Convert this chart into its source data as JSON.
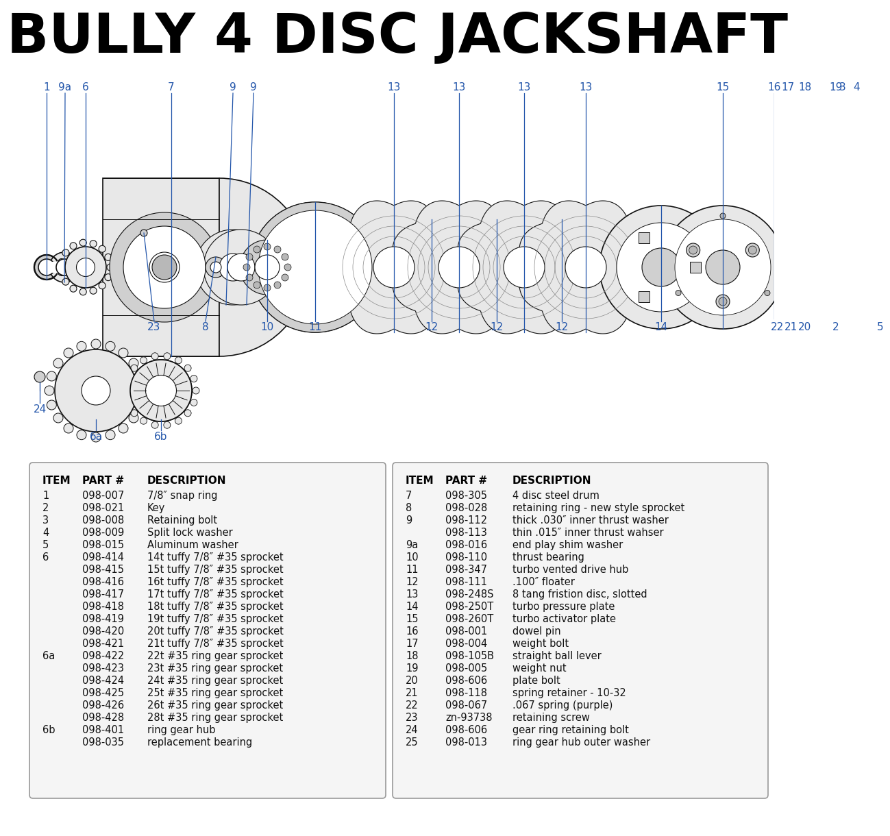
{
  "title": "BULLY 4 DISC JACKSHAFT",
  "title_fontsize": 58,
  "bg_color": "#ffffff",
  "left_table": {
    "headers": [
      "ITEM",
      "PART #",
      "DESCRIPTION"
    ],
    "rows": [
      [
        "1",
        "098-007",
        "7/8″ snap ring"
      ],
      [
        "2",
        "098-021",
        "Key"
      ],
      [
        "3",
        "098-008",
        "Retaining bolt"
      ],
      [
        "4",
        "098-009",
        "Split lock washer"
      ],
      [
        "5",
        "098-015",
        "Aluminum washer"
      ],
      [
        "6",
        "098-414",
        "14t tuffy 7/8″ #35 sprocket"
      ],
      [
        "",
        "098-415",
        "15t tuffy 7/8″ #35 sprocket"
      ],
      [
        "",
        "098-416",
        "16t tuffy 7/8″ #35 sprocket"
      ],
      [
        "",
        "098-417",
        "17t tuffy 7/8″ #35 sprocket"
      ],
      [
        "",
        "098-418",
        "18t tuffy 7/8″ #35 sprocket"
      ],
      [
        "",
        "098-419",
        "19t tuffy 7/8″ #35 sprocket"
      ],
      [
        "",
        "098-420",
        "20t tuffy 7/8″ #35 sprocket"
      ],
      [
        "",
        "098-421",
        "21t tuffy 7/8″ #35 sprocket"
      ],
      [
        "6a",
        "098-422",
        "22t #35 ring gear sprocket"
      ],
      [
        "",
        "098-423",
        "23t #35 ring gear sprocket"
      ],
      [
        "",
        "098-424",
        "24t #35 ring gear sprocket"
      ],
      [
        "",
        "098-425",
        "25t #35 ring gear sprocket"
      ],
      [
        "",
        "098-426",
        "26t #35 ring gear sprocket"
      ],
      [
        "",
        "098-428",
        "28t #35 ring gear sprocket"
      ],
      [
        "6b",
        "098-401",
        "ring gear hub"
      ],
      [
        "",
        "098-035",
        "replacement bearing"
      ]
    ]
  },
  "right_table": {
    "headers": [
      "ITEM",
      "PART #",
      "DESCRIPTION"
    ],
    "rows": [
      [
        "7",
        "098-305",
        "4 disc steel drum"
      ],
      [
        "8",
        "098-028",
        "retaining ring - new style sprocket"
      ],
      [
        "9",
        "098-112",
        "thick .030″ inner thrust washer"
      ],
      [
        "",
        "098-113",
        "thin .015″ inner thrust wahser"
      ],
      [
        "9a",
        "098-016",
        "end play shim washer"
      ],
      [
        "10",
        "098-110",
        "thrust bearing"
      ],
      [
        "11",
        "098-347",
        "turbo vented drive hub"
      ],
      [
        "12",
        "098-111",
        ".100″ floater"
      ],
      [
        "13",
        "098-248S",
        "8 tang fristion disc, slotted"
      ],
      [
        "14",
        "098-250T",
        "turbo pressure plate"
      ],
      [
        "15",
        "098-260T",
        "turbo activator plate"
      ],
      [
        "16",
        "098-001",
        "dowel pin"
      ],
      [
        "17",
        "098-004",
        "weight bolt"
      ],
      [
        "18",
        "098-105B",
        "straight ball lever"
      ],
      [
        "19",
        "098-005",
        "weight nut"
      ],
      [
        "20",
        "098-606",
        "plate bolt"
      ],
      [
        "21",
        "098-118",
        "spring retainer - 10-32"
      ],
      [
        "22",
        "098-067",
        ".067 spring (purple)"
      ],
      [
        "23",
        "zn-93738",
        "retaining screw"
      ],
      [
        "24",
        "098-606",
        "gear ring retaining bolt"
      ],
      [
        "25",
        "098-013",
        "ring gear hub outer washer"
      ]
    ]
  },
  "diagram_label_color": "#2255aa",
  "diagram_label_fontsize": 11,
  "line_color": "#000000",
  "table_border_color": "#999999",
  "table_bg_color": "#f5f5f5"
}
